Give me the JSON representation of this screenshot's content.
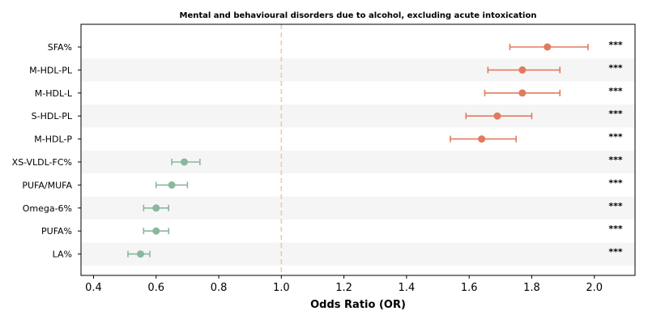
{
  "chart_data": {
    "type": "forest",
    "title": "Mental and behavioural disorders due to alcohol, excluding acute intoxication",
    "xlabel": "Odds Ratio (OR)",
    "xlim": [
      0.36,
      2.13
    ],
    "xticks": [
      0.4,
      0.6,
      0.8,
      1.0,
      1.2,
      1.4,
      1.6,
      1.8,
      2.0
    ],
    "xtick_labels": [
      "0.4",
      "0.6",
      "0.8",
      "1.0",
      "1.2",
      "1.4",
      "1.6",
      "1.8",
      "2.0"
    ],
    "reference_line": 1.0,
    "colors": {
      "risk": "#e07b5e",
      "protective": "#8ab89e",
      "reference": "#f0c890",
      "band": "#f5f5f5"
    },
    "rows": [
      {
        "label": "SFA%",
        "or": 1.85,
        "lower": 1.73,
        "upper": 1.98,
        "significance": "***",
        "group": "risk"
      },
      {
        "label": "M-HDL-PL",
        "or": 1.77,
        "lower": 1.66,
        "upper": 1.89,
        "significance": "***",
        "group": "risk"
      },
      {
        "label": "M-HDL-L",
        "or": 1.77,
        "lower": 1.65,
        "upper": 1.89,
        "significance": "***",
        "group": "risk"
      },
      {
        "label": "S-HDL-PL",
        "or": 1.69,
        "lower": 1.59,
        "upper": 1.8,
        "significance": "***",
        "group": "risk"
      },
      {
        "label": "M-HDL-P",
        "or": 1.64,
        "lower": 1.54,
        "upper": 1.75,
        "significance": "***",
        "group": "risk"
      },
      {
        "label": "XS-VLDL-FC%",
        "or": 0.69,
        "lower": 0.65,
        "upper": 0.74,
        "significance": "***",
        "group": "protective"
      },
      {
        "label": "PUFA/MUFA",
        "or": 0.65,
        "lower": 0.6,
        "upper": 0.7,
        "significance": "***",
        "group": "protective"
      },
      {
        "label": "Omega-6%",
        "or": 0.6,
        "lower": 0.56,
        "upper": 0.64,
        "significance": "***",
        "group": "protective"
      },
      {
        "label": "PUFA%",
        "or": 0.6,
        "lower": 0.56,
        "upper": 0.64,
        "significance": "***",
        "group": "protective"
      },
      {
        "label": "LA%",
        "or": 0.55,
        "lower": 0.51,
        "upper": 0.58,
        "significance": "***",
        "group": "protective"
      }
    ]
  }
}
